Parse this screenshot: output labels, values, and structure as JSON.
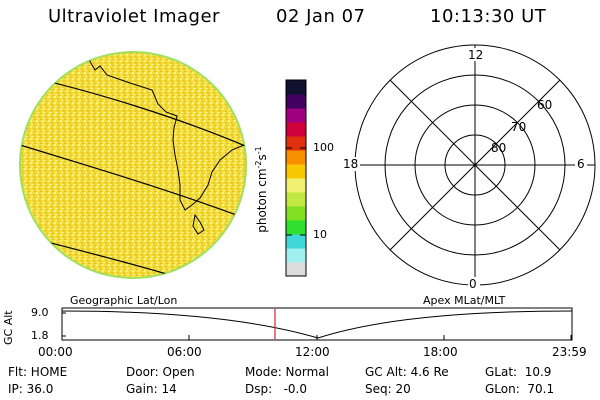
{
  "header": {
    "title": "Ultraviolet Imager",
    "date": "02 Jan 07",
    "time": "10:13:30 UT"
  },
  "colorbar": {
    "unit_main": "photon cm",
    "unit_sup1": "-2",
    "unit_mid": "s",
    "unit_sup2": "-1",
    "ticks": [
      "100",
      "10"
    ],
    "colors": [
      "#dcdcdc",
      "#a0f0f0",
      "#40d8d8",
      "#30e030",
      "#80e020",
      "#c0e840",
      "#f0f070",
      "#f8c800",
      "#f89000",
      "#e03010",
      "#d0003a",
      "#a00080",
      "#400060",
      "#101030"
    ]
  },
  "geo_panel": {
    "label": "Geographic Lat/Lon",
    "disk_fill": "#f4e040",
    "disk_edge": "#a0e060"
  },
  "polar_panel": {
    "label": "Apex MLat/MLT",
    "mlt_labels": {
      "top": "12",
      "left": "18",
      "right": "6",
      "bottom": "0"
    },
    "lat_labels": [
      "60",
      "70",
      "80"
    ]
  },
  "altitude_strip": {
    "ylabel": "GC Alt",
    "yticks": [
      "9.0",
      "1.8"
    ],
    "xticks": [
      "00:00",
      "06:00",
      "12:00",
      "18:00",
      "23:59"
    ],
    "marker_time": "10:13:30",
    "marker_color": "#e02020"
  },
  "info": {
    "filter": "Flt: HOME",
    "ip": "IP: 36.0",
    "door": "Door: Open",
    "gain": "Gain: 14",
    "mode": "Mode: Normal",
    "dsp": "Dsp:   -0.0",
    "gc_alt": "GC Alt: 4.6 Re",
    "seq": "Seq: 20",
    "glat": "GLat:  10.9",
    "glon": "GLon:  70.1"
  }
}
